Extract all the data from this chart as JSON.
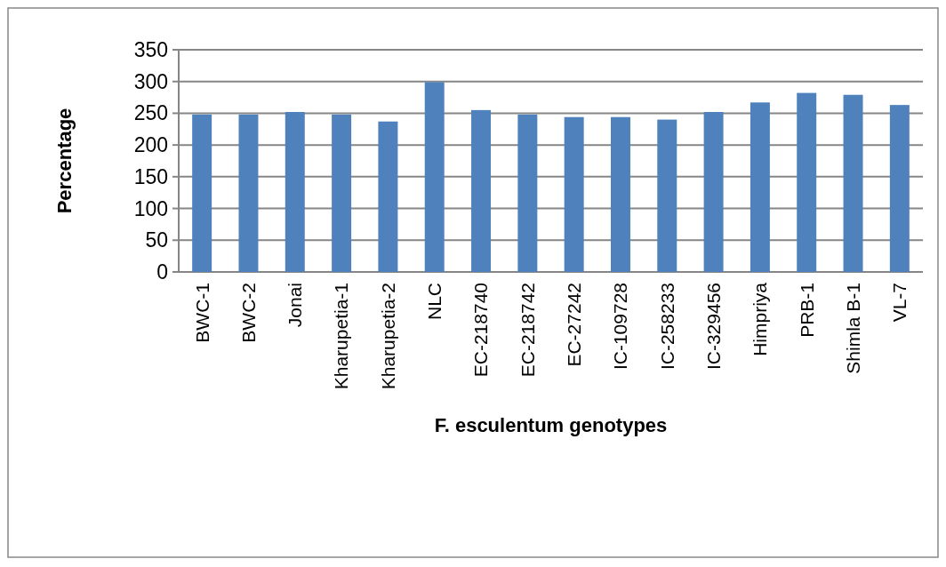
{
  "chart_data": {
    "type": "bar",
    "xlabel": "F. esculentum genotypes",
    "ylabel": "Percentage",
    "categories": [
      "BWC-1",
      "BWC-2",
      "Jonai",
      "Kharupetia-1",
      "Kharupetia-2",
      "NLC",
      "EC-218740",
      "EC-218742",
      "EC-27242",
      "IC-109728",
      "IC-258233",
      "IC-329456",
      "Himpriya",
      "PRB-1",
      "Shimla B-1",
      "VL-7"
    ],
    "values": [
      248,
      248,
      252,
      248,
      237,
      299,
      255,
      248,
      244,
      244,
      240,
      252,
      267,
      282,
      279,
      263
    ],
    "color": "#4f81bd",
    "ylim": [
      0,
      350
    ],
    "yticks": [
      0,
      50,
      100,
      150,
      200,
      250,
      300,
      350
    ],
    "grid": "y"
  }
}
